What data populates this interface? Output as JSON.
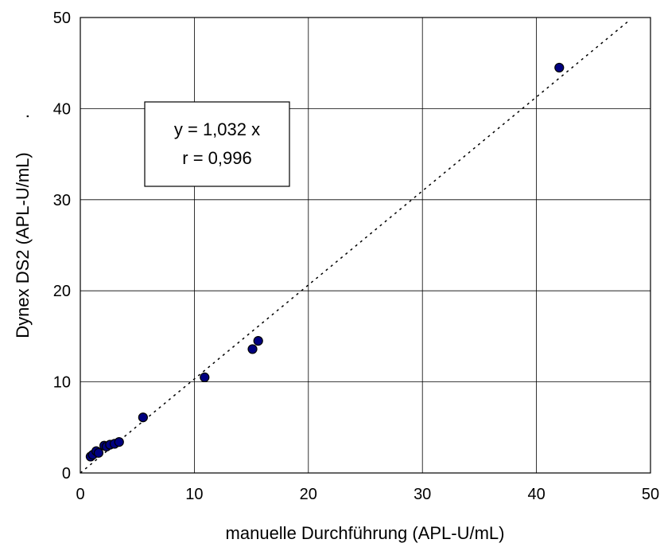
{
  "chart_data": {
    "type": "scatter",
    "xlabel": "manuelle Durchführung (APL-U/mL)",
    "ylabel": "Dynex DS2 (APL-U/mL)",
    "ylabel_marker": ".",
    "xlim": [
      0,
      50
    ],
    "ylim": [
      0,
      50
    ],
    "xticks": [
      0,
      10,
      20,
      30,
      40,
      50
    ],
    "yticks": [
      0,
      10,
      20,
      30,
      40,
      50
    ],
    "xtick_labels": [
      "0",
      "10",
      "20",
      "30",
      "40",
      "50"
    ],
    "ytick_labels": [
      "0",
      "10",
      "20",
      "30",
      "40",
      "50"
    ],
    "grid": true,
    "marker_color": "#000080",
    "series": [
      {
        "x": [
          0.9,
          1.1,
          1.4,
          1.6,
          2.1,
          2.3,
          2.6,
          3.0,
          3.4,
          5.5,
          10.9,
          15.1,
          15.6,
          42.0
        ],
        "y": [
          1.8,
          2.0,
          2.4,
          2.2,
          3.0,
          2.9,
          3.1,
          3.2,
          3.4,
          6.1,
          10.5,
          13.6,
          14.5,
          44.5
        ]
      }
    ],
    "trendline": {
      "slope": 1.032,
      "x_range": [
        0,
        48
      ],
      "style": "dotted"
    },
    "annotation": {
      "line1": "y = 1,032 x",
      "line2": "r = 0,996"
    }
  }
}
